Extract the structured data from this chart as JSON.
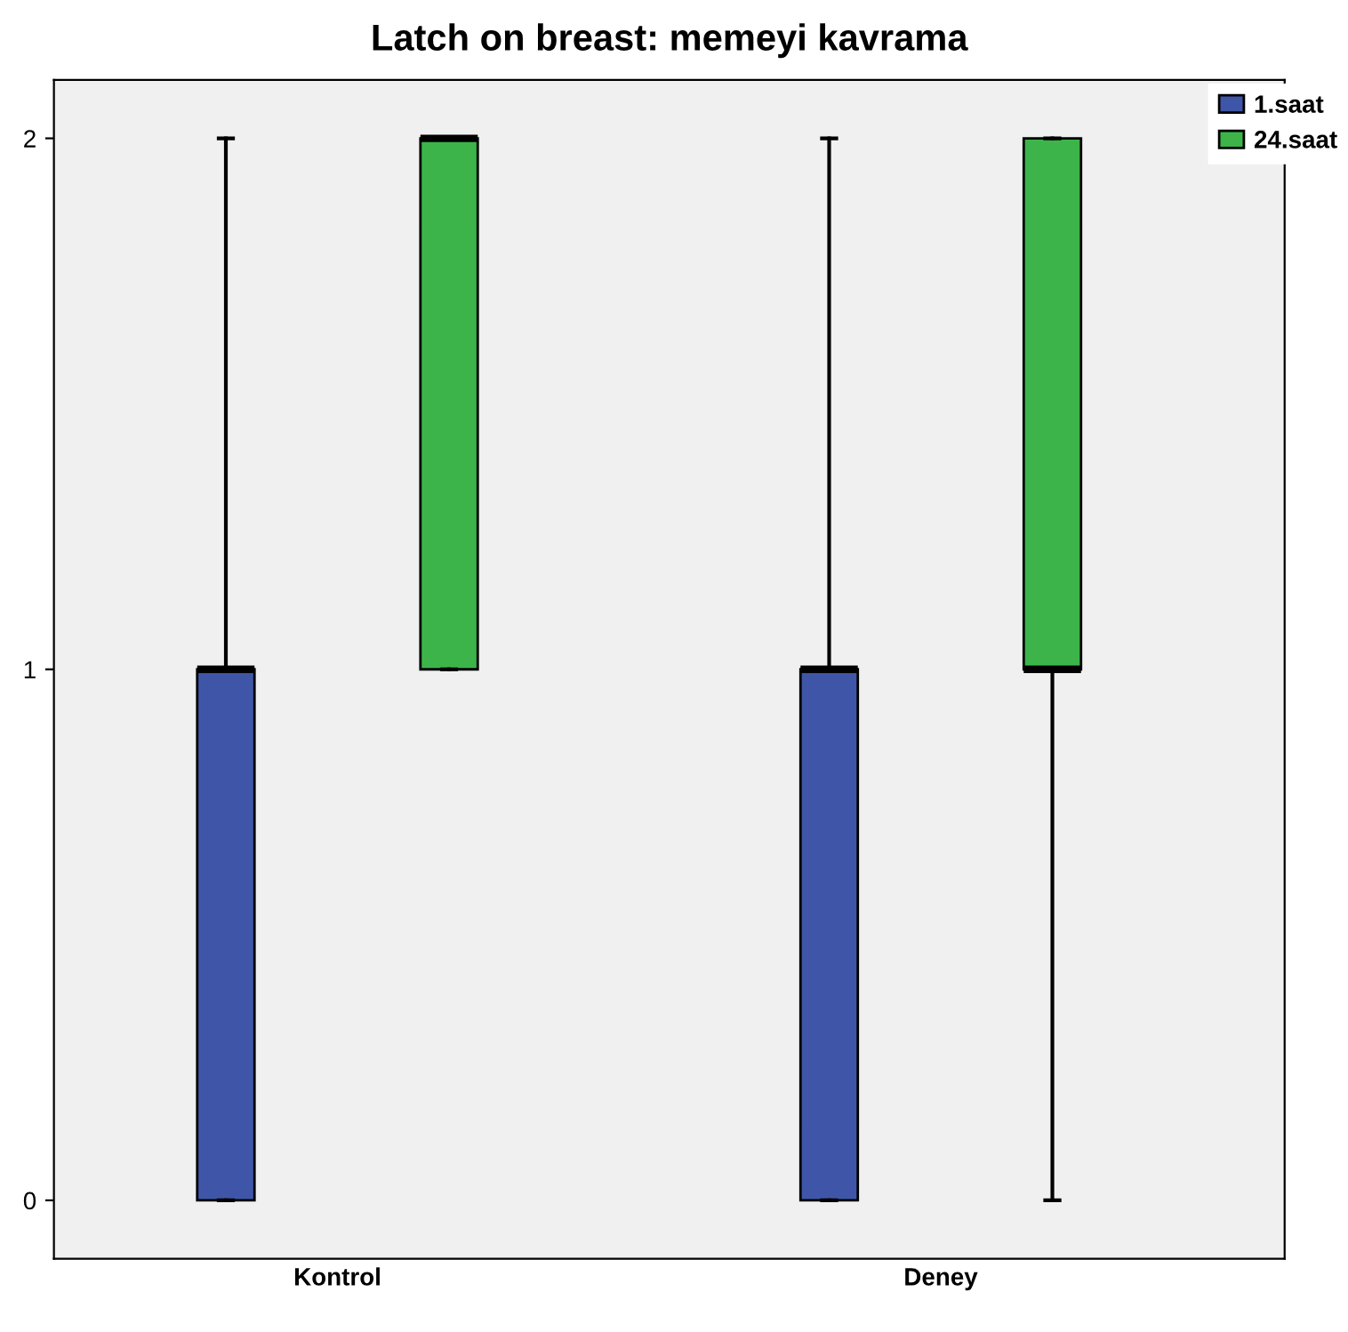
{
  "chart_data": {
    "type": "box",
    "title": "Latch on breast: memeyi kavrama",
    "categories": [
      "Kontrol",
      "Deney"
    ],
    "series": [
      {
        "name": "1.saat",
        "color": "#3f56a8",
        "boxes": [
          {
            "low": 0,
            "q1": 0,
            "median": 1,
            "q3": 1,
            "high": 2
          },
          {
            "low": 0,
            "q1": 0,
            "median": 1,
            "q3": 1,
            "high": 2
          }
        ]
      },
      {
        "name": "24.saat",
        "color": "#3cb44a",
        "boxes": [
          {
            "low": 1,
            "q1": 1,
            "median": 2,
            "q3": 2,
            "high": 2
          },
          {
            "low": 0,
            "q1": 1,
            "median": 1,
            "q3": 2,
            "high": 2
          }
        ]
      }
    ],
    "ylim": [
      -0.11,
      2.11
    ],
    "yticks": [
      0,
      1,
      2
    ],
    "grid": false,
    "legend": "top right"
  }
}
